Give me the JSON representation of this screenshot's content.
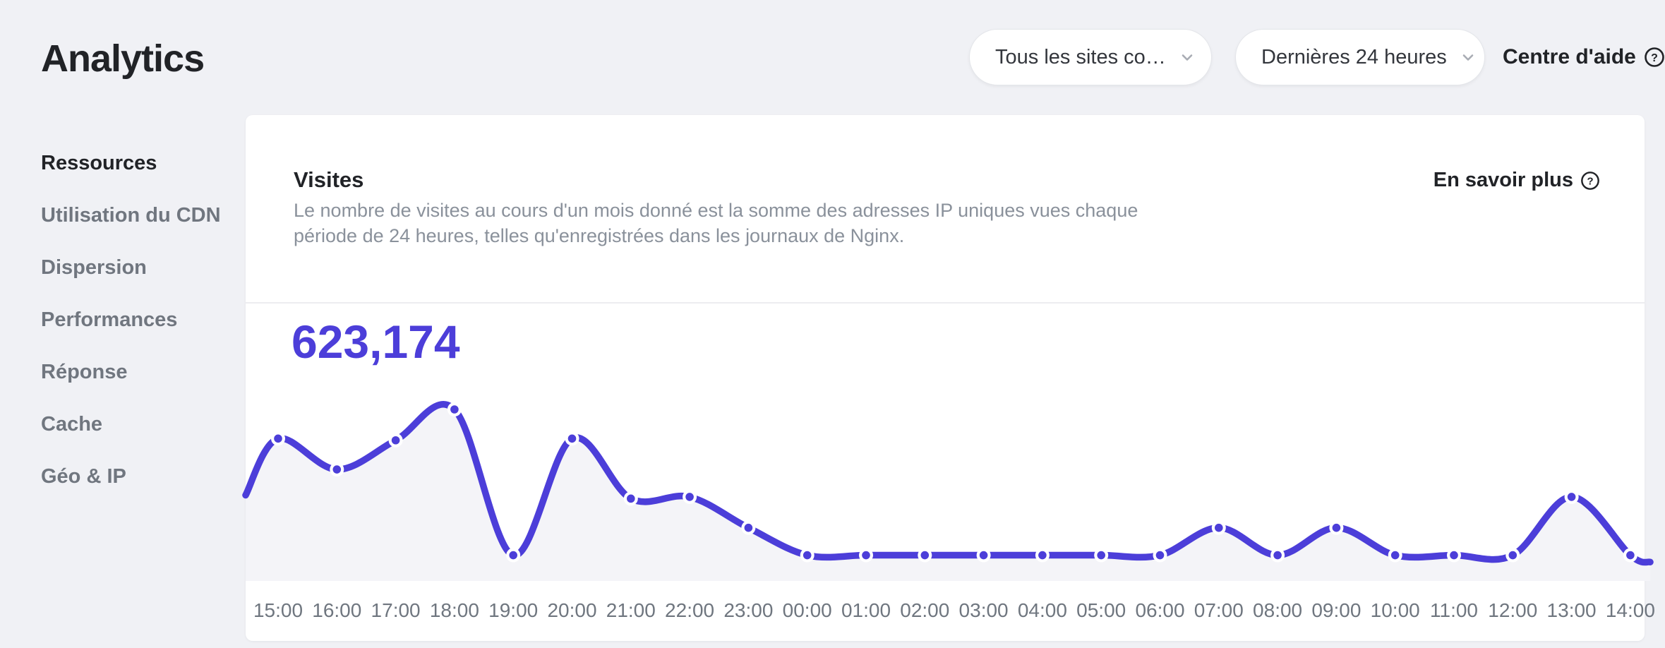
{
  "page": {
    "title": "Analytics"
  },
  "header": {
    "site_selector": {
      "value": "Tous les sites co…"
    },
    "period_selector": {
      "value": "Dernières 24 heures"
    },
    "help_link": {
      "label": "Centre d'aide",
      "icon": "question-circle-icon"
    }
  },
  "sidebar": {
    "items": [
      {
        "label": "Ressources",
        "active": true
      },
      {
        "label": "Utilisation du CDN",
        "active": false
      },
      {
        "label": "Dispersion",
        "active": false
      },
      {
        "label": "Performances",
        "active": false
      },
      {
        "label": "Réponse",
        "active": false
      },
      {
        "label": "Cache",
        "active": false
      },
      {
        "label": "Géo & IP",
        "active": false
      }
    ]
  },
  "card": {
    "title": "Visites",
    "learn_more": {
      "label": "En savoir plus",
      "icon": "question-circle-icon"
    },
    "description": "Le nombre de visites au cours d'un mois donné est la somme des adresses IP uniques vues chaque période de 24 heures, telles qu'enregistrées dans les journaux de Nginx.",
    "total_visits": "623,174"
  },
  "colors": {
    "accent_purple": "#4c3ed9",
    "page_background": "#f0f1f5",
    "card_background": "#ffffff",
    "area_fill": "#f4f4f8",
    "text_dark": "#212327",
    "text_gray": "#8a919b",
    "axis_gray": "#6f767f"
  },
  "chart_data": {
    "type": "line",
    "title": "Visites",
    "total_label": "623,174",
    "x_labels": [
      "15:00",
      "16:00",
      "17:00",
      "18:00",
      "19:00",
      "20:00",
      "21:00",
      "22:00",
      "23:00",
      "00:00",
      "01:00",
      "02:00",
      "03:00",
      "04:00",
      "05:00",
      "06:00",
      "07:00",
      "08:00",
      "09:00",
      "10:00",
      "11:00",
      "12:00",
      "13:00",
      "14:00"
    ],
    "series": [
      {
        "name": "Visites",
        "values_pct_of_peak": [
          83,
          65,
          82,
          100,
          15,
          83,
          48,
          49,
          31,
          15,
          15,
          15,
          15,
          15,
          15,
          15,
          31,
          15,
          31,
          15,
          15,
          15,
          49,
          15
        ]
      }
    ],
    "edge_values_pct": {
      "left": 50,
      "right": 11
    },
    "ylabel": "",
    "xlabel": "",
    "y_axis_shown": false,
    "grid": false,
    "legend": false,
    "line_color": "#4c3ed9",
    "area_fill": "#f4f4f8",
    "marker": "dot-with-white-ring",
    "note": "No y-axis labels shown; values estimated as percent of the 18:00 peak."
  }
}
